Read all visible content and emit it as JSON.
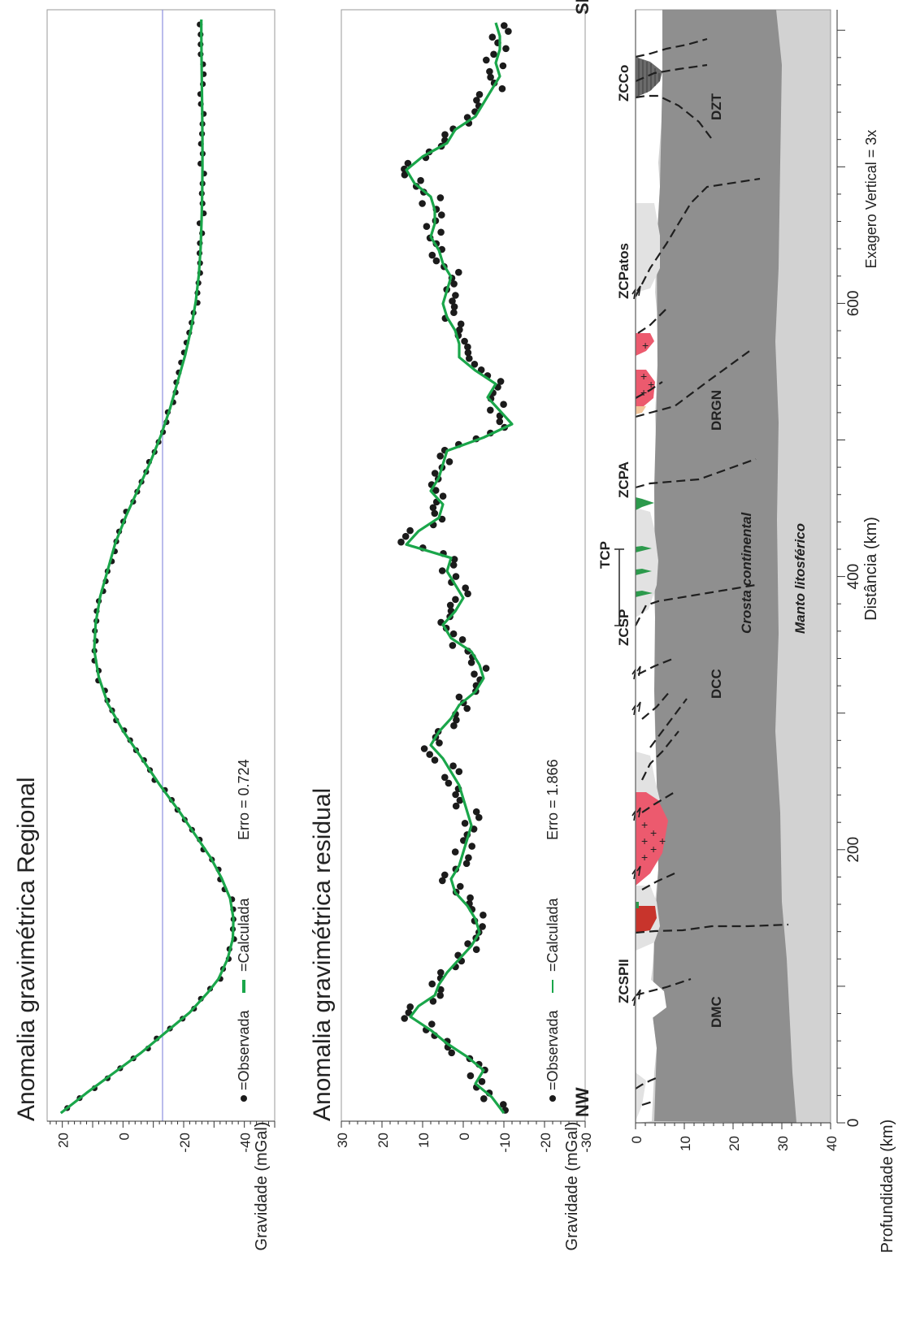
{
  "colors": {
    "calculated": "#1aa64a",
    "observed": "#1b1b1b",
    "reference_line": "#8d8fe0",
    "crust": "#8f8f8f",
    "mantle": "#d2d2d2",
    "light_body": "#e2e2e2",
    "granite": "#ec5a6e",
    "red_body": "#c8342c",
    "green_body": "#2c9a4c",
    "orange_body": "#f3c59a"
  },
  "chart_data": [
    {
      "id": "regional",
      "type": "scatter",
      "title": "Anomalia gravimétrica Regional",
      "ylabel": "Gravidade (mGal)",
      "ylim": [
        -50,
        25
      ],
      "yticks": [
        "20",
        "0",
        "-20",
        "-40"
      ],
      "reference_y": -10,
      "error_label": "Erro = 0.724",
      "legend": {
        "observed": "=Observada",
        "calculated": "=Calculada"
      },
      "x_domain": [
        0,
        815
      ],
      "series": [
        {
          "name": "=Calculada",
          "x": [
            0,
            15,
            30,
            45,
            60,
            75,
            90,
            100,
            115,
            130,
            145,
            160,
            175,
            190,
            205,
            225,
            245,
            265,
            285,
            305,
            325,
            345,
            365,
            385,
            405,
            425,
            445,
            465,
            485,
            505,
            525,
            545,
            565,
            585,
            605,
            625,
            645,
            665,
            685,
            705,
            725,
            745,
            765,
            785,
            805,
            815
          ],
          "y": [
            20.5,
            12,
            3,
            -6,
            -14,
            -22,
            -28,
            -31.5,
            -34.5,
            -36.2,
            -36.4,
            -35.3,
            -32.5,
            -29,
            -24.5,
            -18.5,
            -12,
            -6,
            0,
            5,
            8,
            9.5,
            9,
            7.5,
            5,
            2.5,
            -1,
            -5,
            -9,
            -12.5,
            -15.5,
            -18,
            -20.5,
            -22.5,
            -24,
            -25,
            -25.6,
            -25.9,
            -26.1,
            -26.2,
            -26.2,
            -26.1,
            -26,
            -25.9,
            -25.8,
            -25.8
          ]
        }
      ]
    },
    {
      "id": "residual",
      "type": "scatter",
      "title": "Anomalia gravimétrica residual",
      "ylabel": "Gravidade (mGal)",
      "ylim": [
        -30,
        30
      ],
      "yticks": [
        "30",
        "20",
        "10",
        "0",
        "-10",
        "-20",
        "-30"
      ],
      "error_label": "Erro = 1.866",
      "legend": {
        "observed": "=Observada",
        "calculated": "=Calculada"
      },
      "x_domain": [
        0,
        815
      ],
      "series": [
        {
          "name": "=Calculada",
          "x": [
            0,
            12,
            22,
            32,
            42,
            52,
            62,
            72,
            80,
            88,
            96,
            105,
            115,
            125,
            135,
            145,
            155,
            165,
            175,
            185,
            195,
            205,
            215,
            225,
            235,
            245,
            255,
            265,
            275,
            285,
            295,
            305,
            315,
            325,
            335,
            345,
            355,
            365,
            375,
            385,
            395,
            405,
            415,
            425,
            435,
            445,
            455,
            465,
            475,
            485,
            495,
            505,
            515,
            525,
            535,
            545,
            555,
            565,
            575,
            585,
            595,
            605,
            615,
            625,
            635,
            645,
            655,
            665,
            675,
            685,
            695,
            705,
            715,
            725,
            735,
            745,
            755,
            765,
            775,
            785,
            795,
            805,
            815
          ],
          "y": [
            -10,
            -7,
            -3,
            -5,
            -1,
            4,
            8,
            13,
            11,
            7,
            6,
            4,
            1,
            -2,
            -4,
            -3,
            -1,
            2,
            3,
            1,
            0,
            -1,
            -2,
            -1,
            0,
            1,
            3,
            5,
            8,
            6,
            3,
            1,
            -3,
            -5,
            -4,
            -2,
            3,
            5,
            2,
            0,
            2,
            4,
            3,
            14,
            11,
            6,
            5,
            8,
            6,
            5,
            4,
            -5,
            -12,
            -9,
            -6,
            -8,
            -3,
            1,
            1,
            2,
            4,
            5,
            4,
            3,
            5,
            6,
            8,
            7,
            7,
            8,
            12,
            14,
            10,
            4,
            2,
            -3,
            -5,
            -7,
            -9,
            -8,
            -9,
            -9,
            -8
          ]
        }
      ]
    }
  ],
  "section": {
    "end_left": "NW",
    "end_right": "SE",
    "ylabel": "Profundidade (km)",
    "xlabel": "Distância (km)",
    "depth_ticks": [
      "0",
      "10",
      "20",
      "30",
      "40"
    ],
    "distance_ticks": [
      "0",
      "200",
      "400",
      "600"
    ],
    "exaggeration": "Exagero Vertical = 3x",
    "labels": {
      "zccs": "ZCSPII",
      "zcsp": "ZCSP",
      "tcp": "TCP",
      "zcpa": "ZCPA",
      "zcpatos": "ZCPatos",
      "zcco": "ZCCo",
      "dmc": "DMC",
      "dcc": "DCC",
      "drgn": "DRGN",
      "dzt": "DZT",
      "crust": "Crosta continental",
      "mantle": "Manto litosférico"
    }
  }
}
